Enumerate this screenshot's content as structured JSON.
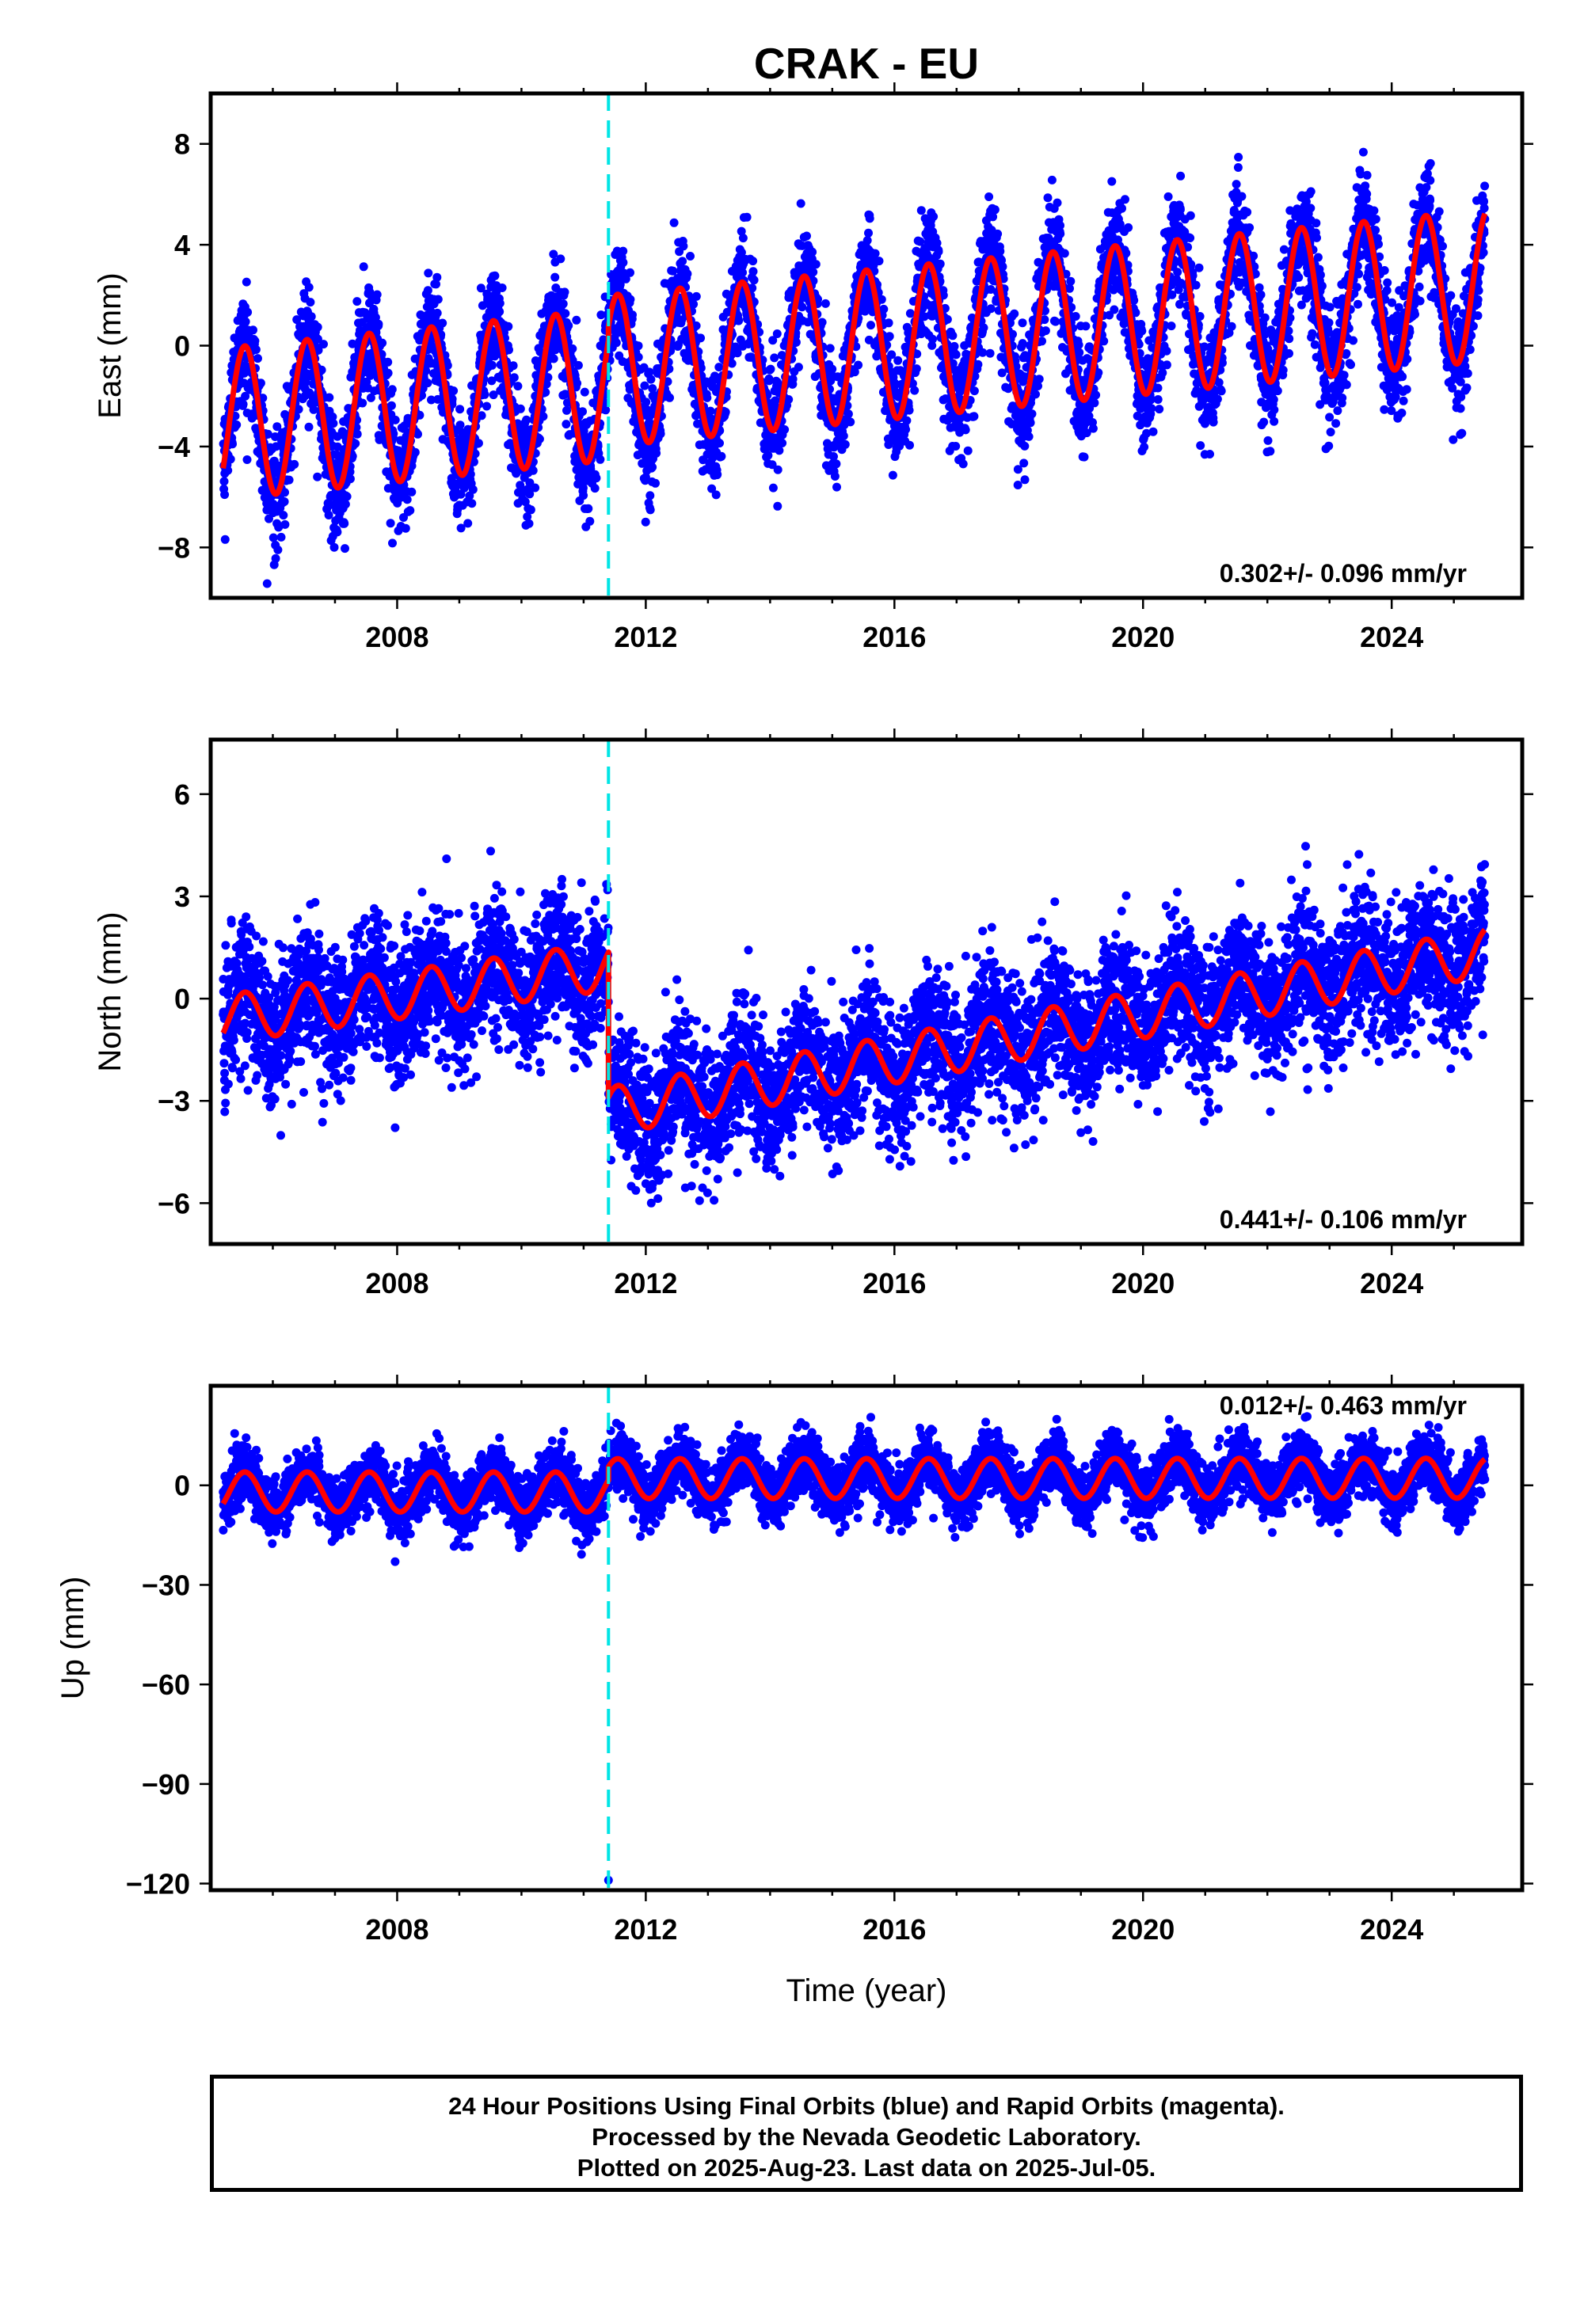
{
  "footer": {
    "line1": "24 Hour Positions Using Final Orbits (blue) and Rapid Orbits (magenta).",
    "line2": "Processed by the Nevada Geodetic Laboratory.",
    "line3": "Plotted on 2025-Aug-23. Last data on 2025-Jul-05."
  },
  "colors": {
    "points": "#0000ff",
    "model": "#ff0000",
    "event": "#00e5e5",
    "frame": "#000000"
  },
  "chart_data": [
    {
      "type": "scatter",
      "title": "CRAK - EU",
      "xlabel": "",
      "ylabel": "East (mm)",
      "xlim": [
        2005.0,
        2026.1
      ],
      "ylim": [
        -10,
        10
      ],
      "x_ticks": [
        2008,
        2012,
        2016,
        2020,
        2024
      ],
      "y_ticks": [
        -8,
        -4,
        0,
        4,
        8
      ],
      "grid": false,
      "rate_label": "0.302+/- 0.096 mm/yr",
      "event_lines_x": [
        2011.4
      ],
      "data_span": [
        2005.2,
        2025.5
      ],
      "model": {
        "pre_offset": [
          -3.1,
          0.25
        ],
        "post_offset": [
          -1.0,
          0.24
        ],
        "seasonal_amplitude": 3.0,
        "seasonal_phase_year": 0.55
      },
      "scatter_noise_sd": 1.1,
      "series": [
        {
          "name": "daily positions",
          "style": "points"
        },
        {
          "name": "model",
          "style": "line"
        }
      ]
    },
    {
      "type": "scatter",
      "title": "",
      "xlabel": "",
      "ylabel": "North (mm)",
      "xlim": [
        2005.0,
        2026.1
      ],
      "ylim": [
        -7.2,
        7.6
      ],
      "x_ticks": [
        2008,
        2012,
        2016,
        2020,
        2024
      ],
      "y_ticks": [
        -6,
        -3,
        0,
        3,
        6
      ],
      "grid": false,
      "rate_label": "0.441+/- 0.106 mm/yr",
      "event_lines_x": [
        2011.4
      ],
      "data_span": [
        2005.2,
        2025.5
      ],
      "model": {
        "pre_offset": [
          -0.6,
          0.25
        ],
        "post_offset": [
          -3.3,
          0.33
        ],
        "seasonal_amplitude": 0.7,
        "seasonal_phase_year": 0.55
      },
      "scatter_noise_sd": 1.0,
      "series": [
        {
          "name": "daily positions",
          "style": "points"
        },
        {
          "name": "model",
          "style": "line"
        }
      ]
    },
    {
      "type": "scatter",
      "title": "",
      "xlabel": "Time (year)",
      "ylabel": "Up (mm)",
      "xlim": [
        2005.0,
        2026.1
      ],
      "ylim": [
        -122,
        30
      ],
      "x_ticks": [
        2008,
        2012,
        2016,
        2020,
        2024
      ],
      "y_ticks": [
        -120,
        -90,
        -60,
        -30,
        0
      ],
      "grid": false,
      "rate_label": "0.012+/- 0.463 mm/yr",
      "event_lines_x": [
        2011.4
      ],
      "data_span": [
        2005.2,
        2025.5
      ],
      "model": {
        "pre_offset": [
          -2.0,
          0.0
        ],
        "post_offset": [
          2.0,
          0.01
        ],
        "seasonal_amplitude": 6.0,
        "seasonal_phase_year": 0.55
      },
      "scatter_noise_sd": 4.5,
      "outliers": [
        [
          2011.4,
          -119
        ]
      ],
      "series": [
        {
          "name": "daily positions",
          "style": "points"
        },
        {
          "name": "model",
          "style": "line"
        }
      ]
    }
  ]
}
